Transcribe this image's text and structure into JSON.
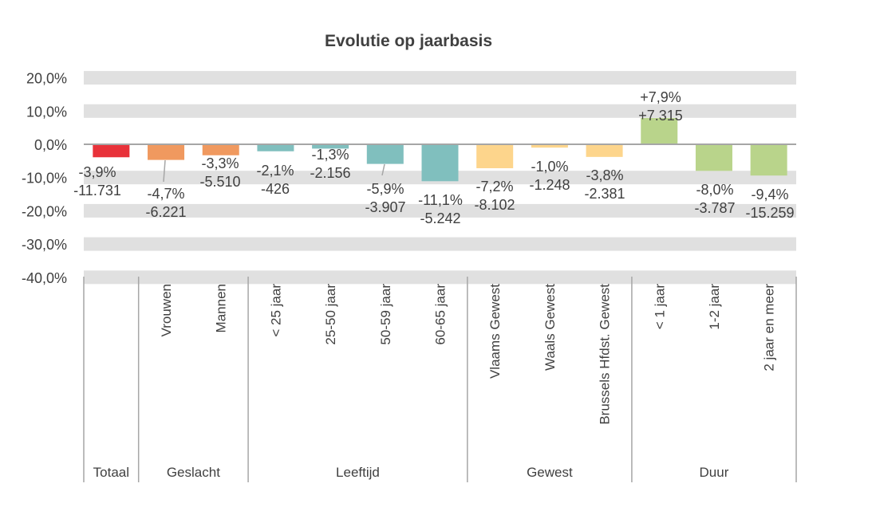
{
  "chart_data": {
    "type": "bar",
    "title": "Evolutie op jaarbasis",
    "xlabel": "",
    "ylabel": "",
    "ylim": [
      -40,
      20
    ],
    "y_ticks": [
      "20,0%",
      "10,0%",
      "0,0%",
      "-10,0%",
      "-20,0%",
      "-30,0%",
      "-40,0%"
    ],
    "y_tick_values": [
      20,
      10,
      0,
      -10,
      -20,
      -30,
      -40
    ],
    "grid": "banded",
    "categories": [
      "",
      "Vrouwen",
      "Mannen",
      "< 25 jaar",
      "25-50 jaar",
      "50-59 jaar",
      "60-65 jaar",
      "Vlaams Gewest",
      "Waals Gewest",
      "Brussels Hfdst. Gewest",
      "< 1 jaar",
      "1-2 jaar",
      "2 jaar en meer"
    ],
    "values": [
      -3.9,
      -4.7,
      -3.3,
      -2.1,
      -1.3,
      -5.9,
      -11.1,
      -7.2,
      -1.0,
      -3.8,
      7.9,
      -8.0,
      -9.4
    ],
    "pct_labels": [
      "-3,9%",
      "-4,7%",
      "-3,3%",
      "-2,1%",
      "-1,3%",
      "-5,9%",
      "-11,1%",
      "-7,2%",
      "-1,0%",
      "-3,8%",
      "+7,9%",
      "-8,0%",
      "-9,4%"
    ],
    "abs_labels": [
      "-11.731",
      "-6.221",
      "-5.510",
      "-426",
      "-2.156",
      "-3.907",
      "-5.242",
      "-8.102",
      "-1.248",
      "-2.381",
      "+7.315",
      "-3.787",
      "-15.259"
    ],
    "groups": [
      {
        "name": "Totaal",
        "count": 1,
        "color": "#E8323A"
      },
      {
        "name": "Geslacht",
        "count": 2,
        "color": "#F0995F"
      },
      {
        "name": "Leeftijd",
        "count": 4,
        "color": "#80BFBE"
      },
      {
        "name": "Gewest",
        "count": 3,
        "color": "#FDD58C"
      },
      {
        "name": "Duur",
        "count": 3,
        "color": "#B9D48B"
      }
    ]
  }
}
